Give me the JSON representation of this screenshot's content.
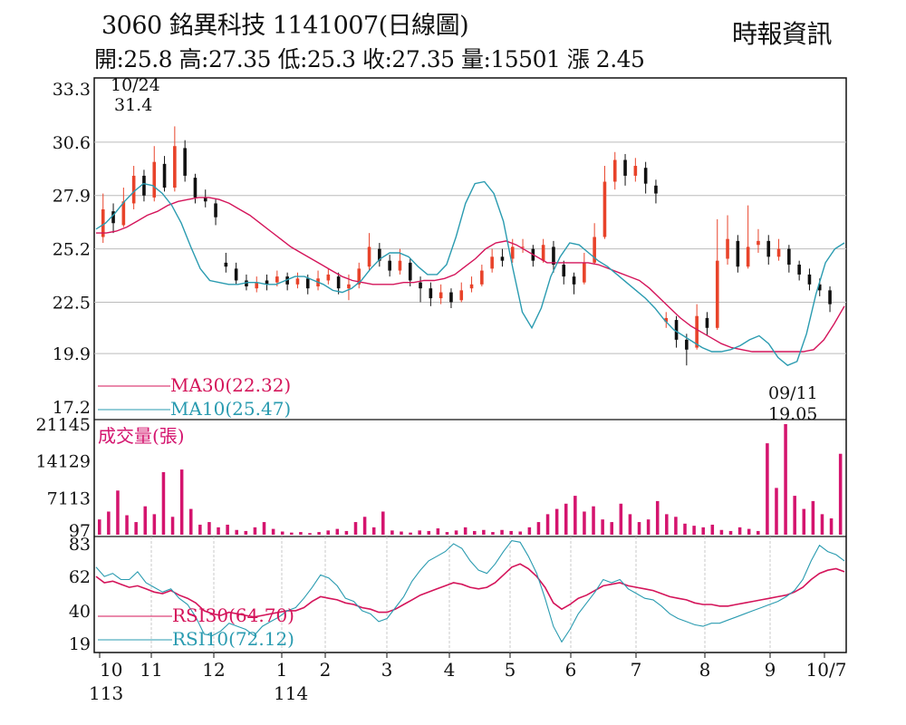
{
  "header": {
    "title": "3060  銘異科技 1141007(日線圖)",
    "ohlc": "開:25.8 高:27.35 低:25.3 收:27.35 量:15501 漲 2.45",
    "brand": "時報資訊"
  },
  "colors": {
    "up": "#e8432a",
    "down": "#111111",
    "ma30": "#d4145a",
    "ma10": "#2a9bb0",
    "volume": "#d4146e",
    "rsi30": "#d4145a",
    "rsi10": "#2a9bb0",
    "grid": "#bbbbbb"
  },
  "chart_data": [
    {
      "type": "line",
      "panel": "price",
      "series_kind": "candlestick",
      "y_ticks": [
        "33.3",
        "30.6",
        "27.9",
        "25.2",
        "22.5",
        "19.9",
        "17.2"
      ],
      "ylim": [
        17.2,
        33.3
      ],
      "grid": true,
      "high_annotation": {
        "date": "10/24",
        "value": "31.4"
      },
      "low_annotation": {
        "date": "09/11",
        "value": "19.05"
      },
      "x_ticks": [
        "10",
        "11",
        "12",
        "1",
        "2",
        "3",
        "4",
        "5",
        "6",
        "7",
        "8",
        "9",
        "10/7"
      ],
      "x_ticks_year": [
        "113",
        "114"
      ],
      "series": [
        {
          "name": "MA30(22.32)",
          "values": [
            26,
            26,
            26.1,
            26.3,
            26.6,
            26.9,
            27.1,
            27.4,
            27.6,
            27.7,
            27.8,
            27.8,
            27.7,
            27.5,
            27.2,
            26.9,
            26.5,
            26.1,
            25.7,
            25.3,
            25,
            24.7,
            24.4,
            24.1,
            23.8,
            23.6,
            23.5,
            23.4,
            23.4,
            23.4,
            23.5,
            23.5,
            23.6,
            23.6,
            23.7,
            23.9,
            24.3,
            24.7,
            25.2,
            25.5,
            25.6,
            25.4,
            25.1,
            24.8,
            24.5,
            24.5,
            24.5,
            24.5,
            24.5,
            24.4,
            24.2,
            24,
            23.8,
            23.6,
            23.2,
            22.7,
            22.2,
            21.7,
            21.3,
            21,
            20.7,
            20.4,
            20.2,
            20.1,
            20,
            20,
            20,
            20,
            20,
            20,
            20.1,
            20.6,
            21.4,
            22.3
          ]
        },
        {
          "name": "MA10(25.47)",
          "values": [
            26.2,
            26.5,
            27,
            27.6,
            28.1,
            28.5,
            28.4,
            28,
            27.4,
            26.5,
            25.3,
            24.2,
            23.6,
            23.5,
            23.4,
            23.4,
            23.5,
            23.5,
            23.4,
            23.4,
            23.6,
            23.8,
            23.8,
            23.6,
            23.4,
            23.1,
            23,
            23.2,
            23.6,
            24.2,
            24.7,
            25,
            25,
            24.8,
            24.3,
            23.9,
            23.9,
            24.4,
            25.8,
            27.5,
            28.5,
            28.6,
            28,
            26.6,
            24.2,
            22,
            21.2,
            22.2,
            23.8,
            24.8,
            25.5,
            25.4,
            25,
            24.6,
            24.3,
            23.9,
            23.5,
            23.1,
            22.7,
            22.2,
            21.6,
            21.1,
            20.8,
            20.5,
            20.2,
            20,
            20,
            20.1,
            20.3,
            20.6,
            20.8,
            20.4,
            19.7,
            19.3,
            19.5,
            20.9,
            22.9,
            24.5,
            25.2,
            25.5
          ]
        }
      ],
      "candles": [
        [
          25.8,
          27.2,
          28,
          25.5
        ],
        [
          27.1,
          26.5,
          27.5,
          26
        ],
        [
          26.4,
          27.6,
          28.3,
          26.3
        ],
        [
          27.5,
          28.9,
          29.4,
          27.2
        ],
        [
          28.9,
          27.9,
          29.2,
          27.6
        ],
        [
          27.8,
          29.6,
          30.4,
          27.6
        ],
        [
          29.5,
          28.3,
          29.9,
          28.1
        ],
        [
          28.3,
          30.4,
          31.4,
          28.1
        ],
        [
          30.3,
          28.9,
          30.7,
          28.6
        ],
        [
          28.8,
          27.8,
          29,
          27.5
        ],
        [
          27.8,
          27.6,
          28.2,
          27.3
        ],
        [
          27.5,
          26.8,
          27.7,
          26.4
        ],
        [
          24.5,
          24.3,
          25,
          24
        ],
        [
          24.2,
          23.6,
          24.5,
          23.4
        ],
        [
          23.6,
          23.3,
          23.9,
          23.1
        ],
        [
          23.2,
          23.5,
          23.8,
          23
        ],
        [
          23.6,
          23.4,
          23.9,
          23.1
        ],
        [
          23.5,
          23.8,
          24.1,
          23.3
        ],
        [
          23.8,
          23.4,
          24,
          23.1
        ],
        [
          23.4,
          23.7,
          24,
          23.2
        ],
        [
          23.7,
          23.2,
          23.9,
          22.9
        ],
        [
          23.3,
          23.7,
          24.1,
          23.1
        ],
        [
          23.6,
          23.9,
          24.2,
          23.4
        ],
        [
          23.8,
          23.2,
          24,
          22.9
        ],
        [
          23.2,
          23.4,
          23.9,
          22.6
        ],
        [
          23.4,
          24.2,
          24.5,
          23.2
        ],
        [
          24.3,
          25.3,
          26,
          24.1
        ],
        [
          25.2,
          24.6,
          25.5,
          24.3
        ],
        [
          24.6,
          24.1,
          24.9,
          23.8
        ],
        [
          24.1,
          24.6,
          25.2,
          23.9
        ],
        [
          24.5,
          23.6,
          24.7,
          23.3
        ],
        [
          23.5,
          23.2,
          23.8,
          22.5
        ],
        [
          23.2,
          22.7,
          23.5,
          22.3
        ],
        [
          22.7,
          23,
          23.4,
          22.4
        ],
        [
          23,
          22.5,
          23.2,
          22.2
        ],
        [
          22.6,
          23.1,
          23.5,
          22.5
        ],
        [
          23.2,
          23.4,
          23.8,
          23
        ],
        [
          23.4,
          24.1,
          24.4,
          23.3
        ],
        [
          24.2,
          24.8,
          25.2,
          24
        ],
        [
          24.8,
          24.6,
          25.2,
          24.3
        ],
        [
          24.7,
          25.3,
          25.7,
          24.5
        ],
        [
          25.3,
          25.3,
          25.7,
          25
        ],
        [
          25.2,
          24.6,
          25.4,
          24.3
        ],
        [
          24.6,
          25.4,
          25.7,
          24.5
        ],
        [
          25.3,
          24.4,
          25.6,
          24
        ],
        [
          24.4,
          23.8,
          24.6,
          23.4
        ],
        [
          23.8,
          23.4,
          24,
          22.9
        ],
        [
          23.5,
          24.5,
          25,
          23.4
        ],
        [
          24.5,
          25.8,
          26.5,
          24.4
        ],
        [
          25.8,
          28.6,
          29.4,
          25.7
        ],
        [
          28.6,
          29.7,
          30.1,
          28.2
        ],
        [
          29.7,
          28.9,
          30,
          28.4
        ],
        [
          28.9,
          29.4,
          29.8,
          28.6
        ],
        [
          29.3,
          28.5,
          29.6,
          28
        ],
        [
          28.4,
          28,
          28.7,
          27.5
        ],
        [
          21.5,
          21.7,
          22,
          21.2
        ],
        [
          21.6,
          20.6,
          21.8,
          20.2
        ],
        [
          20.6,
          20.1,
          20.9,
          19.3
        ],
        [
          20.2,
          21.8,
          22.4,
          20.1
        ],
        [
          21.7,
          21.2,
          22,
          20.8
        ],
        [
          21.2,
          24.6,
          26.7,
          21.1
        ],
        [
          24.7,
          25.7,
          26.9,
          24.4
        ],
        [
          25.6,
          24.3,
          25.9,
          24
        ],
        [
          24.3,
          25.3,
          27.4,
          24.2
        ],
        [
          25.4,
          25.6,
          26.2,
          25
        ],
        [
          25.6,
          24.8,
          25.9,
          24.4
        ],
        [
          24.8,
          25.2,
          25.7,
          24.6
        ],
        [
          25.2,
          24.4,
          25.4,
          24
        ],
        [
          24.4,
          23.9,
          24.6,
          23.6
        ],
        [
          23.9,
          23.4,
          24.2,
          23.1
        ],
        [
          23.4,
          23.1,
          23.7,
          22.8
        ],
        [
          23.1,
          22.4,
          23.3,
          22
        ]
      ]
    },
    {
      "type": "bar",
      "panel": "volume",
      "title": "成交量(張)",
      "y_ticks": [
        "21145",
        "14129",
        "7113",
        "97"
      ],
      "ylim": [
        97,
        21145
      ],
      "series": [
        {
          "name": "成交量(張)",
          "values": [
            3000,
            4500,
            8500,
            3800,
            2500,
            5500,
            4000,
            12000,
            3500,
            12500,
            5000,
            2000,
            2500,
            1500,
            2000,
            1000,
            800,
            1500,
            2500,
            1200,
            700,
            500,
            600,
            400,
            600,
            900,
            1200,
            800,
            2500,
            3500,
            1500,
            4500,
            900,
            700,
            500,
            900,
            800,
            1300,
            600,
            900,
            1500,
            800,
            1000,
            600,
            1000,
            800,
            700,
            1500,
            2500,
            4000,
            5000,
            6000,
            7500,
            4500,
            5500,
            3000,
            2500,
            6000,
            4000,
            2500,
            3000,
            6500,
            4000,
            3500,
            2200,
            1800,
            1500,
            2000,
            1000,
            800,
            1500,
            1200,
            800,
            17500,
            9000,
            21145,
            7500,
            5000,
            6500,
            4000,
            3200,
            15501
          ]
        }
      ]
    },
    {
      "type": "line",
      "panel": "rsi",
      "y_ticks": [
        "83",
        "62",
        "40",
        "19"
      ],
      "ylim": [
        19,
        83
      ],
      "series": [
        {
          "name": "RSI30(64.70)",
          "values": [
            62,
            58,
            59,
            57,
            55,
            56,
            54,
            52,
            51,
            53,
            50,
            48,
            45,
            40,
            38,
            37,
            39,
            38,
            37,
            36,
            37,
            38,
            39,
            40,
            40,
            42,
            46,
            49,
            48,
            47,
            45,
            44,
            42,
            41,
            39,
            39,
            41,
            44,
            47,
            50,
            52,
            54,
            56,
            58,
            57,
            55,
            54,
            55,
            58,
            63,
            68,
            70,
            67,
            62,
            55,
            45,
            41,
            44,
            48,
            50,
            53,
            56,
            57,
            58,
            56,
            55,
            54,
            53,
            51,
            49,
            48,
            47,
            45,
            44,
            44,
            43,
            43,
            44,
            45,
            46,
            47,
            48,
            49,
            50,
            52,
            55,
            60,
            64,
            66,
            67,
            65
          ]
        },
        {
          "name": "RSI10(72.12)",
          "values": [
            68,
            62,
            64,
            60,
            60,
            65,
            58,
            55,
            52,
            54,
            48,
            44,
            36,
            25,
            24,
            27,
            32,
            30,
            28,
            24,
            30,
            33,
            36,
            40,
            42,
            48,
            55,
            63,
            61,
            56,
            48,
            46,
            40,
            38,
            33,
            35,
            42,
            49,
            59,
            66,
            72,
            75,
            78,
            83,
            80,
            72,
            66,
            64,
            70,
            78,
            85,
            84,
            75,
            64,
            48,
            30,
            20,
            28,
            38,
            45,
            52,
            60,
            58,
            60,
            54,
            51,
            48,
            47,
            43,
            38,
            35,
            33,
            31,
            30,
            32,
            32,
            34,
            36,
            38,
            40,
            42,
            44,
            46,
            49,
            53,
            60,
            72,
            82,
            78,
            76,
            72
          ]
        }
      ]
    }
  ]
}
